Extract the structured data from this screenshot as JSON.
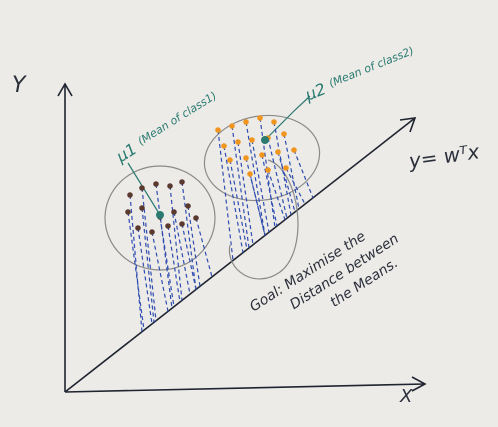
{
  "axes": {
    "y_label": "Y",
    "x_label": "X"
  },
  "line_label": "y= wᵀx",
  "class1_label": {
    "symbol": "μ1",
    "text": "(Mean of class1)"
  },
  "class2_label": {
    "symbol": "μ2",
    "text": "(Mean of class2)"
  },
  "goal": {
    "lines": [
      "Goal: Maximise the",
      "Distance between",
      "the Means."
    ]
  }
}
